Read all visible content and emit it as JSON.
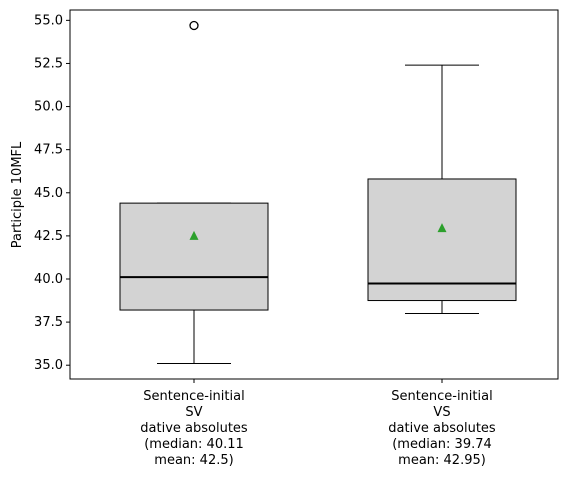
{
  "chart_data": {
    "type": "box",
    "title": "",
    "xlabel": "",
    "ylabel": "Participle 10MFL",
    "ylim": [
      34.2,
      55.6
    ],
    "yticks": [
      "35.0",
      "37.5",
      "40.0",
      "42.5",
      "45.0",
      "47.5",
      "50.0",
      "52.5",
      "55.0"
    ],
    "grid": false,
    "categories": [
      [
        "Sentence-initial",
        "SV",
        "dative absolutes",
        "(median: 40.11",
        "mean: 42.5)"
      ],
      [
        "Sentence-initial",
        "VS",
        "dative absolutes",
        "(median: 39.74",
        "mean: 42.95)"
      ]
    ],
    "boxes": [
      {
        "whisker_low": 35.1,
        "q1": 38.2,
        "median": 40.11,
        "q3": 44.4,
        "whisker_high": 44.4,
        "mean": 42.5,
        "outliers": [
          54.7
        ]
      },
      {
        "whisker_low": 38.0,
        "q1": 38.75,
        "median": 39.74,
        "q3": 45.8,
        "whisker_high": 52.4,
        "mean": 42.95,
        "outliers": []
      }
    ],
    "colors": {
      "box_fill": "#d3d3d3",
      "median": "#000000",
      "mean_marker": "#2ca02c",
      "outline": "#000000"
    }
  }
}
